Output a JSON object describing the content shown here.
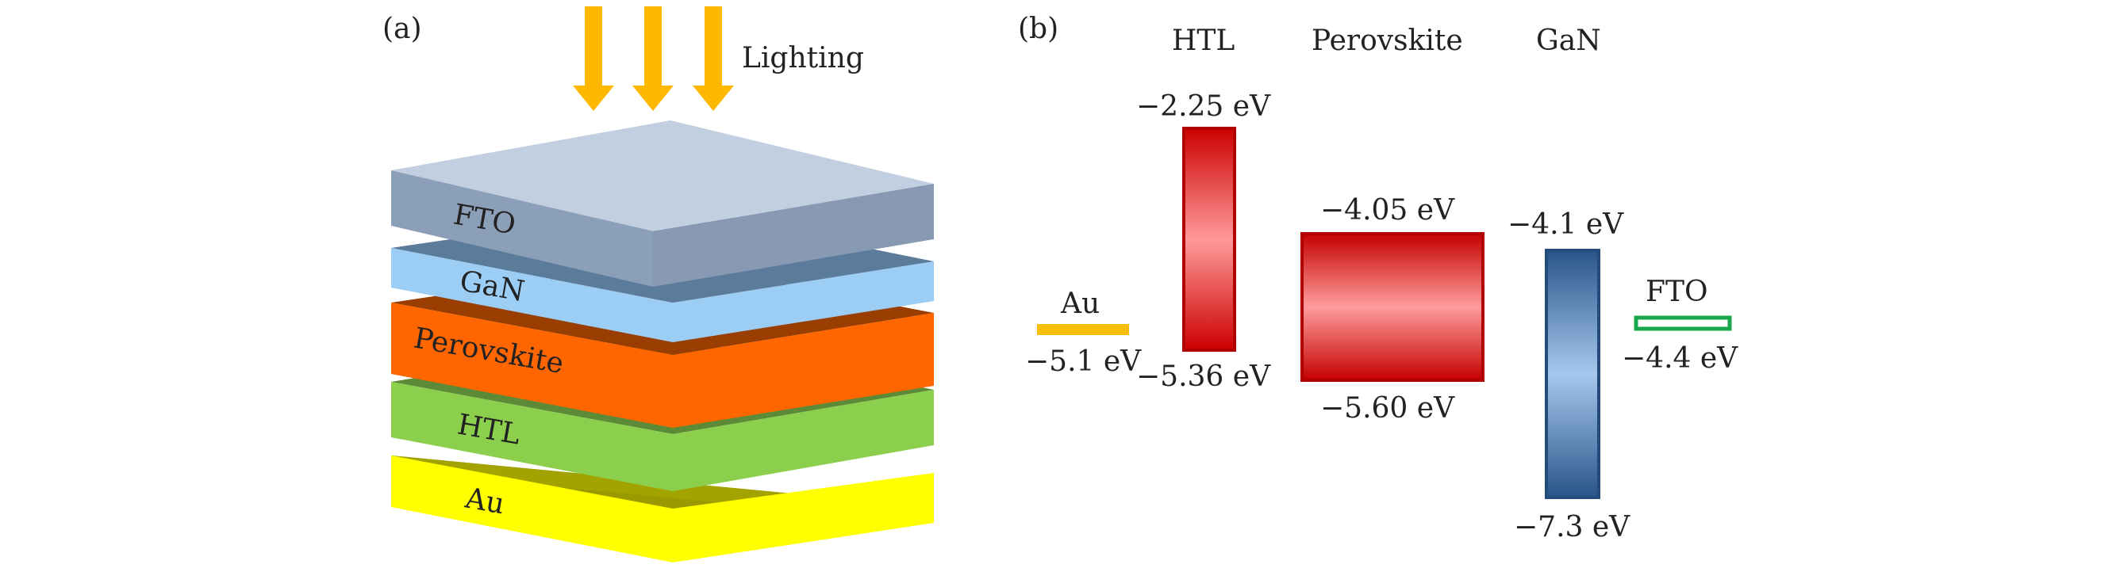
{
  "panel_a": {
    "label": "(a)",
    "lighting_label": "Lighting",
    "layers": [
      "FTO",
      "GaN",
      "Perovskite",
      "HTL",
      "Au"
    ]
  },
  "panel_b": {
    "label": "(b)",
    "headers": [
      "HTL",
      "Perovskite",
      "GaN"
    ],
    "au": {
      "name": "Au",
      "level": "−5.1 eV"
    },
    "htl": {
      "top": "−2.25 eV",
      "bottom": "−5.36 eV"
    },
    "perovskite": {
      "top": "−4.05 eV",
      "bottom": "−5.60 eV"
    },
    "gan": {
      "top": "−4.1 eV",
      "bottom": "−7.3 eV"
    },
    "fto": {
      "name": "FTO",
      "level": "−4.4 eV"
    }
  },
  "colors": {
    "arrow": "#FFB800",
    "fto": "#8c9fb8",
    "gan": "#9ccdf5",
    "perovskite": "#ff6600",
    "htl": "#8ccf4d",
    "au": "#ffff00",
    "htl_bar": "#dd0000",
    "perovskite_bar": "#d40000",
    "gan_bar": "#2f5f95",
    "fto_bar": "#1aa84a",
    "au_bar": "#f8bf0a"
  }
}
